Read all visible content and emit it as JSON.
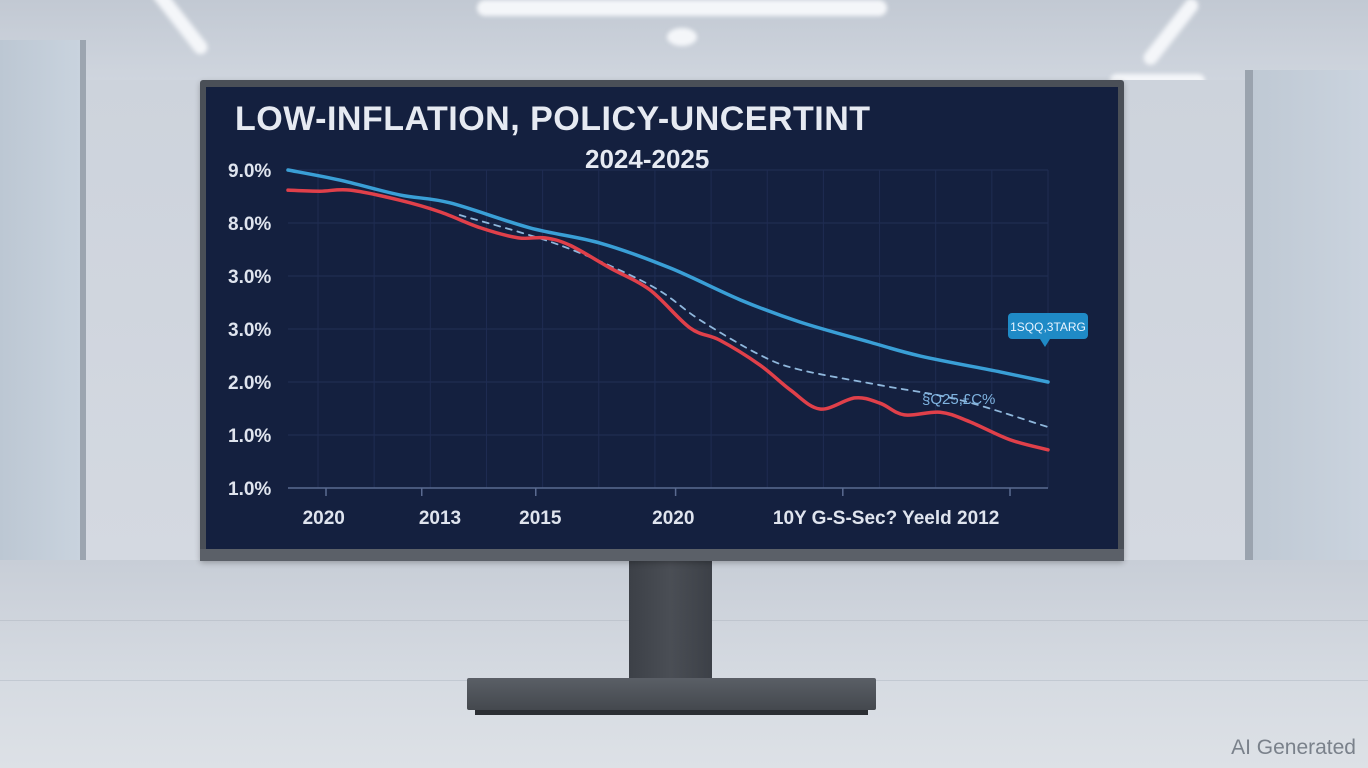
{
  "scene": {
    "description": "Office room with a monitor on a stand displaying a line chart",
    "watermark": "AI Generated"
  },
  "colors": {
    "screen_bg": "#14203f",
    "series_blue": "#3a9fd6",
    "series_red": "#e0404a",
    "series_dashed": "#8fb7dc",
    "callout_bg": "#1f8ac6",
    "text": "#e6eaf2"
  },
  "chart_data": {
    "type": "line",
    "title": "LOW-INFLATION, POLICY-UNCERTINT",
    "subtitle": "2024-2025",
    "xlabel": "",
    "ylabel": "",
    "y_tick_labels": [
      "1.0%",
      "1.0%",
      "2.0%",
      "3.0%",
      "3.0%",
      "8.0%",
      "9.0%"
    ],
    "y_axis_note": "Tick labels are non-monotonic as shown; y values below are in evenly-spaced tick units (0 = bottom tick '1.0%', 6 = top tick '9.0%').",
    "ylim": [
      0,
      6
    ],
    "x_tick_labels": [
      "2020",
      "2013",
      "2015",
      "2020",
      "10Y G-S-Sec? Yeeld 2012"
    ],
    "x_axis_note": "x values are normalized position across the plotted range (0 = left end, 1 = right end).",
    "xlim": [
      0,
      1
    ],
    "grid": true,
    "series": [
      {
        "name": "Blue series",
        "style": "solid",
        "color": "#3a9fd6",
        "x": [
          0.0,
          0.068,
          0.147,
          0.213,
          0.318,
          0.411,
          0.503,
          0.595,
          0.674,
          0.766,
          0.832,
          0.937,
          1.0
        ],
        "y": [
          6.0,
          5.81,
          5.53,
          5.38,
          4.91,
          4.62,
          4.15,
          3.55,
          3.13,
          2.75,
          2.49,
          2.19,
          2.0
        ]
      },
      {
        "name": "Red series",
        "style": "solid",
        "color": "#e0404a",
        "x": [
          0.0,
          0.042,
          0.082,
          0.147,
          0.2,
          0.253,
          0.303,
          0.338,
          0.371,
          0.424,
          0.476,
          0.529,
          0.568,
          0.621,
          0.661,
          0.7,
          0.746,
          0.779,
          0.811,
          0.858,
          0.897,
          0.95,
          1.0
        ],
        "y": [
          5.62,
          5.6,
          5.62,
          5.43,
          5.21,
          4.91,
          4.72,
          4.72,
          4.58,
          4.15,
          3.74,
          3.02,
          2.79,
          2.32,
          1.85,
          1.49,
          1.7,
          1.6,
          1.38,
          1.43,
          1.25,
          0.91,
          0.72
        ]
      },
      {
        "name": "Dashed series",
        "style": "dashed",
        "color": "#8fb7dc",
        "x": [
          0.226,
          0.358,
          0.476,
          0.542,
          0.621,
          0.674,
          0.779,
          0.884,
          1.0
        ],
        "y": [
          5.15,
          4.58,
          3.83,
          3.17,
          2.51,
          2.23,
          1.94,
          1.66,
          1.15
        ]
      }
    ],
    "annotations": [
      {
        "text": "§Q25,£C%",
        "attached_to": "Dashed series",
        "type": "label"
      },
      {
        "text": "1SQQ,3TARG",
        "attached_to": "Blue series",
        "type": "callout"
      }
    ],
    "legend": "none"
  }
}
